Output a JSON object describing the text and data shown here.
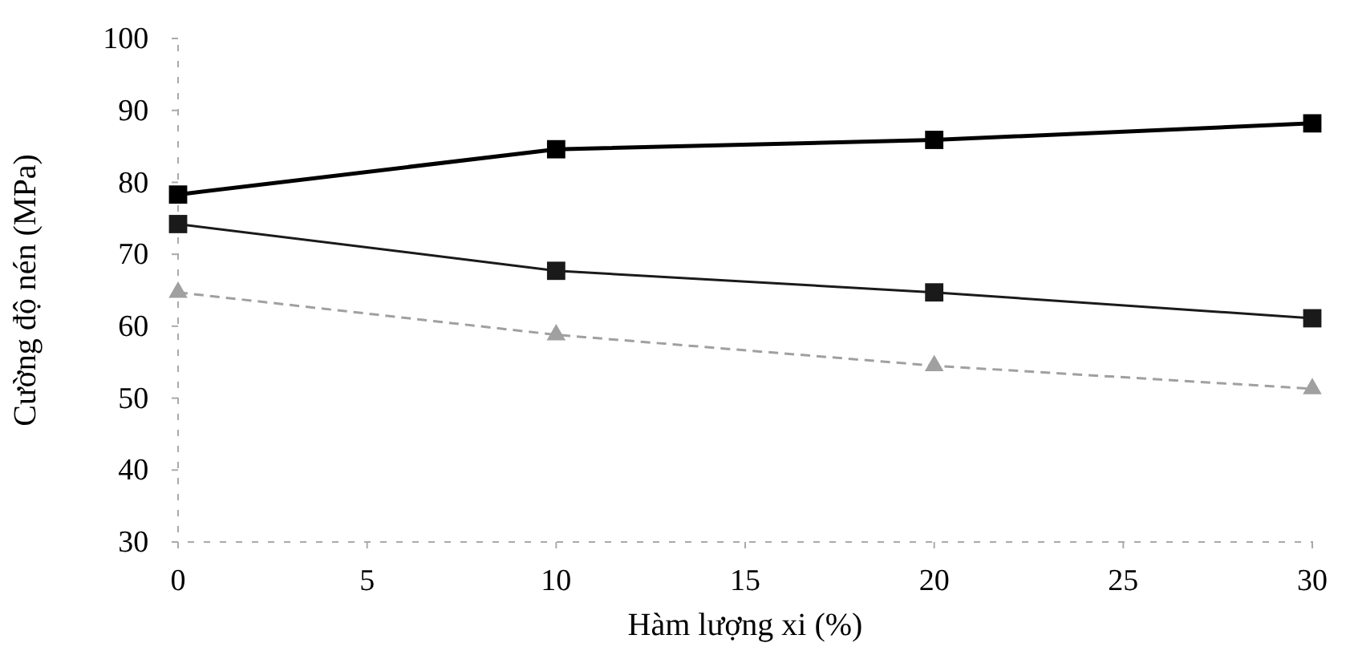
{
  "chart_data": {
    "type": "line",
    "xlabel": "Hàm lượng xi (%)",
    "ylabel": "Cường độ nén (MPa)",
    "x": [
      0,
      10,
      20,
      30
    ],
    "series": [
      {
        "color": "#000000",
        "values": [
          78.3,
          84.6,
          85.9,
          88.2
        ],
        "marker": "square",
        "line_style": "solid"
      },
      {
        "color": "#1a1a1a",
        "values": [
          74.2,
          67.7,
          64.7,
          61.1
        ],
        "marker": "square",
        "line_style": "solid"
      },
      {
        "color": "#a0a0a0",
        "values": [
          64.7,
          58.8,
          54.5,
          51.3
        ],
        "marker": "triangle",
        "line_style": "dashed"
      }
    ],
    "xlim": [
      0,
      30
    ],
    "xticks": [
      0,
      5,
      10,
      15,
      20,
      25,
      30
    ],
    "ylim": [
      30,
      100
    ],
    "yticks": [
      30,
      40,
      50,
      60,
      70,
      80,
      90,
      100
    ]
  }
}
